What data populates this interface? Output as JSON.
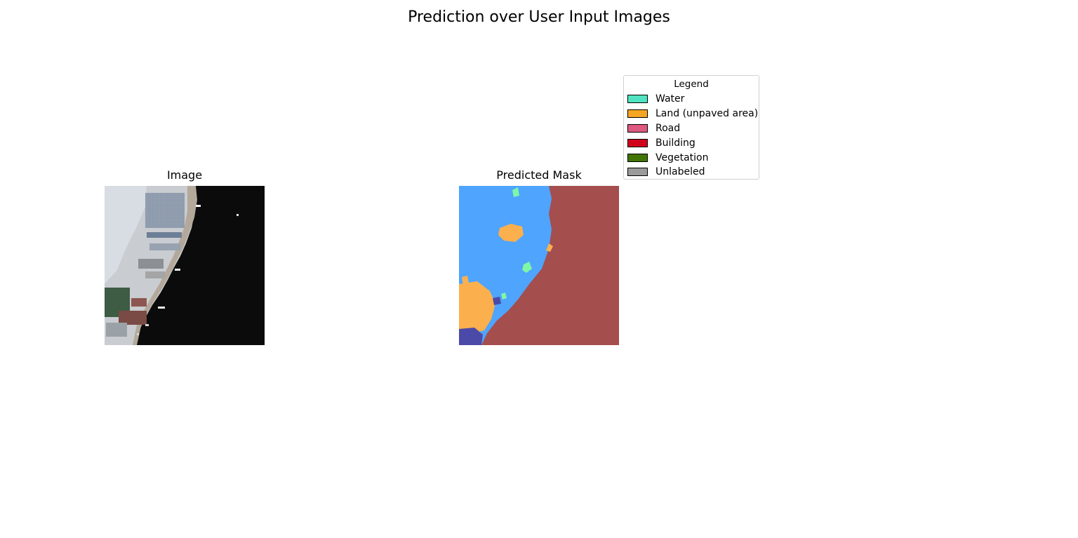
{
  "figure": {
    "title": "Prediction over User Input Images"
  },
  "panels": {
    "image": {
      "title": "Image"
    },
    "mask": {
      "title": "Predicted Mask"
    }
  },
  "legend": {
    "title": "Legend",
    "items": [
      {
        "label": "Water",
        "color": "#50e3c2"
      },
      {
        "label": "Land (unpaved area)",
        "color": "#f5a623"
      },
      {
        "label": "Road",
        "color": "#de597f"
      },
      {
        "label": "Building",
        "color": "#d0021b"
      },
      {
        "label": "Vegetation",
        "color": "#417505"
      },
      {
        "label": "Unlabeled",
        "color": "#9b9b9b"
      }
    ]
  },
  "mask_colors": {
    "blue_region": "#4fa4fd",
    "dark_red_region": "#a54e4e",
    "orange_region": "#fbb04d",
    "indigo_region": "#4c4aa8",
    "mint_region": "#7ff7a6"
  }
}
